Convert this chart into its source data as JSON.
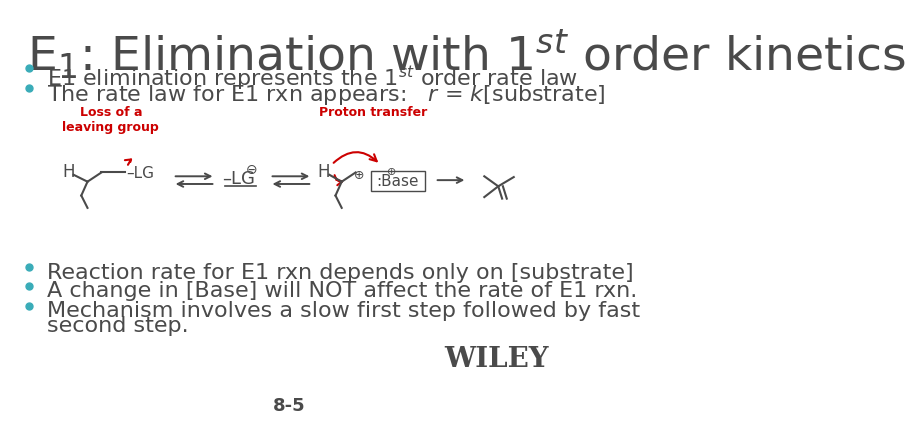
{
  "title": "E$_1$: Elimination with 1$^{st}$ order kinetics",
  "bullet_color": "#3aacb8",
  "text_color": "#4a4a4a",
  "red_color": "#cc0000",
  "background_color": "#ffffff",
  "bullet1": "E1 elimination represents the 1$^{st}$ order rate law",
  "bullet2": "The rate law for E1 rxn appears:   $r$ = $k$[substrate]",
  "bullet3": "Reaction rate for E1 rxn depends only on [substrate]",
  "bullet4": "A change in [Base] will NOT affect the rate of E1 rxn.",
  "bullet5a": "Mechanism involves a slow first step followed by fast",
  "bullet5b": "second step.",
  "label_loss": "Loss of a\nleaving group",
  "label_proton": "Proton transfer",
  "page_number": "8-5",
  "wiley_text": "WILEY",
  "title_fontsize": 34,
  "bullet_fontsize": 16,
  "wiley_fontsize": 20,
  "page_fontsize": 13
}
